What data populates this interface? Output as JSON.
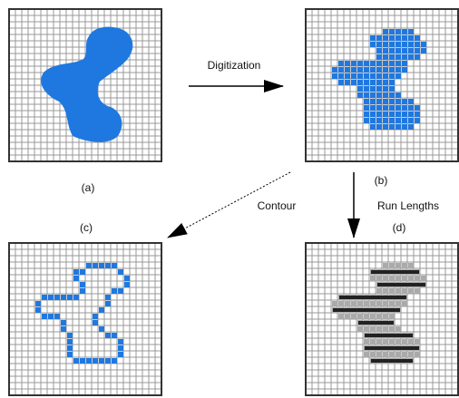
{
  "labels": {
    "digitization": "Digitization",
    "a": "(a)",
    "b": "(b)",
    "contour": "Contour",
    "run_lengths": "Run Lengths",
    "c": "(c)",
    "d": "(d)"
  }
}
